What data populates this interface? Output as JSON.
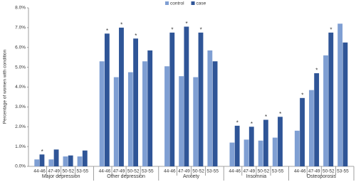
{
  "chart_data": {
    "type": "grouped-bar",
    "y_label": "Percentage of women with condition",
    "groups": [
      "Major depression",
      "Other depression",
      "Anxiety",
      "Insomnia",
      "Osteoporosis"
    ],
    "categories": [
      "44-46",
      "47-49",
      "50-52",
      "53-55",
      "44-46",
      "47-49",
      "50-52",
      "53-55",
      "44-46",
      "47-49",
      "50-52",
      "53-55",
      "44-46",
      "47-49",
      "50-52",
      "53-55",
      "44-46",
      "47-49",
      "50-52",
      "53-55"
    ],
    "series": [
      {
        "name": "control",
        "color": "#7f9fd3",
        "values": [
          0.35,
          0.35,
          0.5,
          0.5,
          5.3,
          4.5,
          4.75,
          5.3,
          5.05,
          4.55,
          4.5,
          5.85,
          1.2,
          1.35,
          1.3,
          1.45,
          1.8,
          3.85,
          5.6,
          7.2
        ]
      },
      {
        "name": "case",
        "color": "#2f5597",
        "values": [
          0.6,
          0.85,
          0.55,
          0.8,
          6.7,
          7.0,
          6.45,
          5.85,
          6.75,
          7.05,
          6.75,
          5.3,
          2.05,
          2.0,
          2.35,
          2.5,
          3.45,
          4.7,
          6.75,
          6.25
        ]
      }
    ],
    "significance": [
      "*",
      null,
      null,
      null,
      "*",
      "*",
      "*",
      null,
      "*",
      "*",
      "*",
      null,
      "*",
      "*",
      "*",
      "*",
      "*",
      "*",
      "*",
      null
    ],
    "significance_color": "#c00000",
    "ylim": [
      0,
      8
    ],
    "yticks": [
      {
        "value": 0,
        "label": "0.0%"
      },
      {
        "value": 1,
        "label": "1.0%"
      },
      {
        "value": 2,
        "label": "2.0%"
      },
      {
        "value": 3,
        "label": "3.0%"
      },
      {
        "value": 4,
        "label": "4.0%"
      },
      {
        "value": 5,
        "label": "5.0%"
      },
      {
        "value": 6,
        "label": "6.0%"
      },
      {
        "value": 7,
        "label": "7.0%"
      },
      {
        "value": 8,
        "label": "8.0%"
      }
    ],
    "grid": false,
    "legend": "top"
  }
}
